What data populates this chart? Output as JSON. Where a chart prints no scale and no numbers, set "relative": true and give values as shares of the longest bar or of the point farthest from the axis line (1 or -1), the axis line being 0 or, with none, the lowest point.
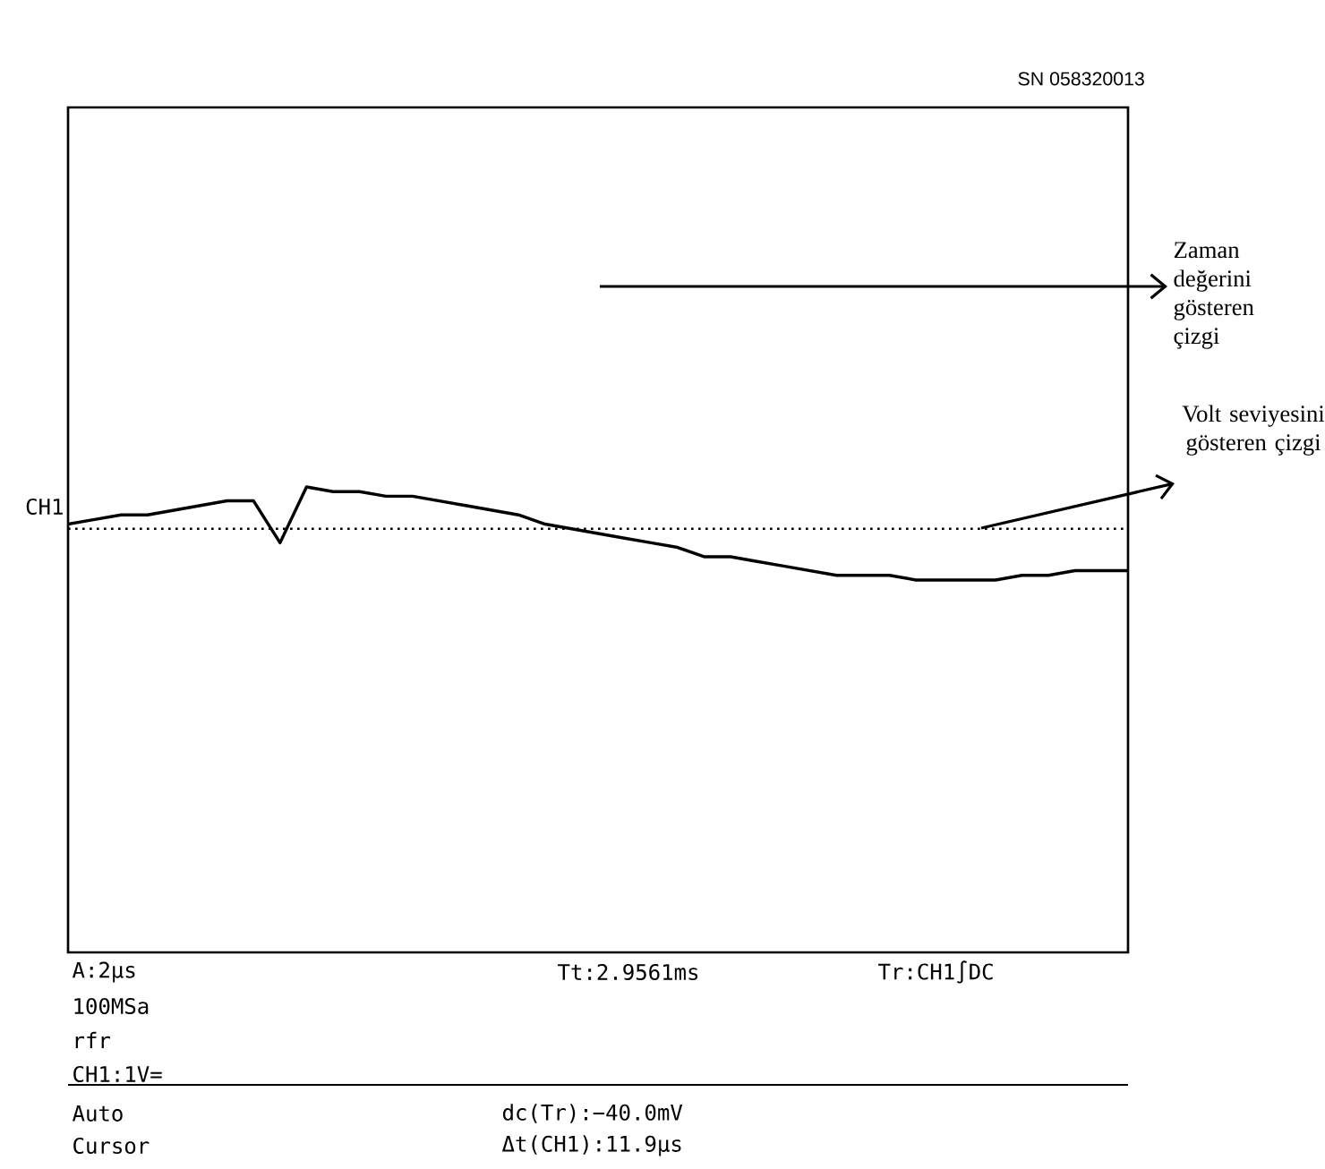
{
  "chart_data": {
    "type": "line",
    "relative": true,
    "categories": [
      null,
      null,
      null,
      null,
      null,
      null,
      null,
      null,
      null,
      null,
      null,
      null,
      null,
      null,
      null,
      null,
      null,
      null,
      null,
      null,
      null,
      null,
      null,
      null,
      null,
      null,
      null,
      null,
      null,
      null,
      null,
      null,
      null,
      null,
      null,
      null,
      null,
      null,
      null,
      null,
      null
    ],
    "series": [
      {
        "color": "#000000",
        "values": [
          0.92,
          0.93,
          0.94,
          0.94,
          0.95,
          0.96,
          0.97,
          0.97,
          0.88,
          1.0,
          0.99,
          0.99,
          0.98,
          0.98,
          0.97,
          0.96,
          0.95,
          0.94,
          0.92,
          0.91,
          0.9,
          0.89,
          0.88,
          0.87,
          0.85,
          0.85,
          0.84,
          0.83,
          0.82,
          0.81,
          0.81,
          0.81,
          0.8,
          0.8,
          0.8,
          0.8,
          0.81,
          0.81,
          0.82,
          0.82,
          0.82
        ]
      }
    ],
    "ref_lines": [
      {
        "axis": "y",
        "value": 0.91,
        "line_style": "dotted",
        "color": "#000000"
      }
    ],
    "line_style": "solid",
    "marker": "none",
    "annotations": [
      "CH1",
      "A:2µs",
      "100MSa",
      "rfr",
      "CH1:1V=",
      "Tt:2.9561ms",
      "Tr:CH1∫DC",
      "Auto",
      "Cursor",
      "dc(Tr):−40.0mV",
      "Δt(CH1):11.9µs",
      "Zaman değerini gösteren çizgi",
      "Volt seviyesini gösteren çizgi",
      "SN  058320013"
    ]
  }
}
